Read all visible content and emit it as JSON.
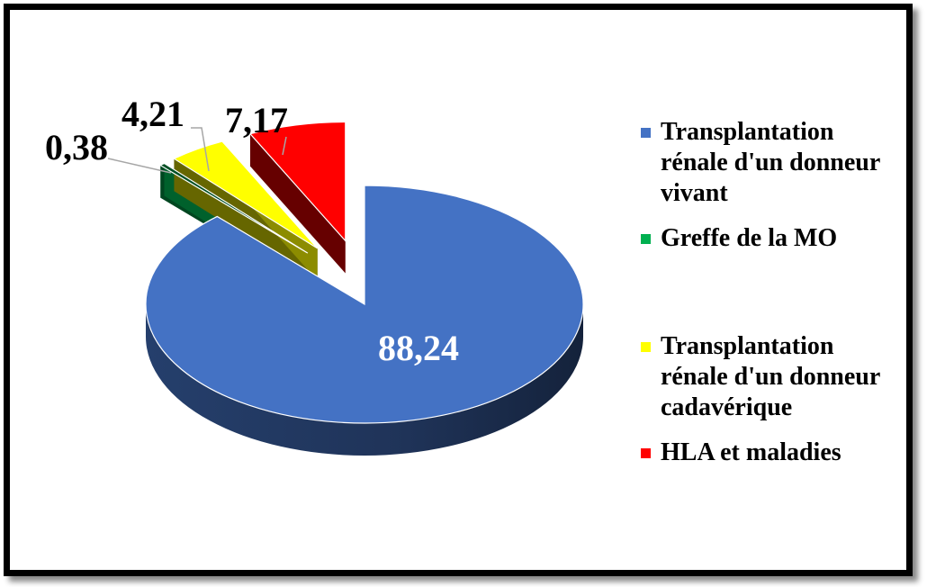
{
  "chart_data": {
    "type": "pie",
    "categories": [
      "Transplantation rénale d'un donneur vivant",
      "Greffe de la MO",
      "Transplantation rénale d'un donneur cadavérique",
      "HLA et maladies"
    ],
    "values": [
      88.24,
      0.38,
      4.21,
      7.17
    ],
    "value_labels": [
      "88,24",
      "0,38",
      "4,21",
      "7,17"
    ],
    "colors": [
      "#4472c4",
      "#00b050",
      "#ffff00",
      "#ff0000"
    ],
    "legend": "right"
  }
}
